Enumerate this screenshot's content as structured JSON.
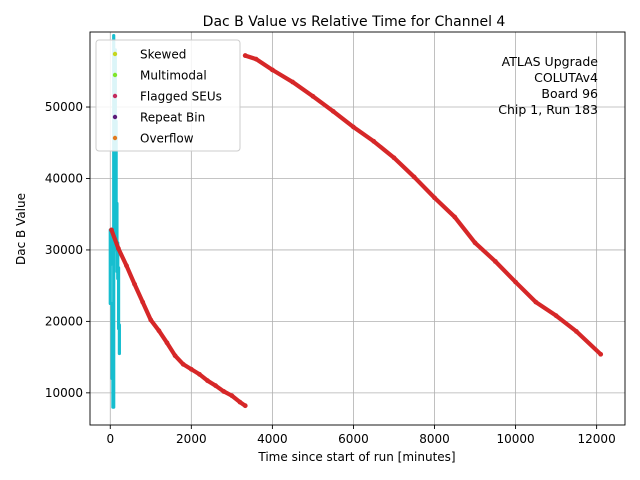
{
  "chart_data": {
    "type": "scatter",
    "title": "Dac B Value vs Relative Time for Channel 4",
    "xlabel": "Time since start of run [minutes]",
    "ylabel": "Dac B Value",
    "xlim": [
      -500,
      12700
    ],
    "ylim": [
      5500,
      60500
    ],
    "xticks": [
      0,
      2000,
      4000,
      6000,
      8000,
      10000,
      12000
    ],
    "xtick_labels": [
      "0",
      "2000",
      "4000",
      "6000",
      "8000",
      "10000",
      "12000"
    ],
    "yticks": [
      10000,
      20000,
      30000,
      40000,
      50000
    ],
    "ytick_labels": [
      "10000",
      "20000",
      "30000",
      "40000",
      "50000"
    ],
    "grid": true,
    "legend_position": "top-left",
    "annotation": [
      "ATLAS Upgrade",
      "COLUTAv4",
      "Board 96",
      "Chip 1, Run 183"
    ],
    "series": [
      {
        "name": "Skewed",
        "color": "#c5d61f",
        "x": [],
        "y": []
      },
      {
        "name": "Multimodal",
        "color": "#7fe62a",
        "x": [],
        "y": []
      },
      {
        "name": "Flagged SEUs",
        "color": "#c42a5d",
        "x": [],
        "y": []
      },
      {
        "name": "Repeat Bin",
        "color": "#5b1a7a",
        "x": [],
        "y": []
      },
      {
        "name": "Overflow",
        "color": "#e07a1f",
        "x": [],
        "y": []
      },
      {
        "name": "Cyan",
        "color": "#17becf",
        "in_legend": false,
        "segments": [
          {
            "x": [
              0,
              0
            ],
            "y": [
              22500,
              32800
            ]
          },
          {
            "x": [
              25,
              25
            ],
            "y": [
              28000,
              32500
            ]
          },
          {
            "x": [
              45,
              45
            ],
            "y": [
              12000,
              22500
            ]
          },
          {
            "x": [
              65,
              65
            ],
            "y": [
              8000,
              12500
            ]
          },
          {
            "x": [
              85,
              85
            ],
            "y": [
              8000,
              60000
            ]
          },
          {
            "x": [
              105,
              105
            ],
            "y": [
              31000,
              56000
            ]
          },
          {
            "x": [
              125,
              125
            ],
            "y": [
              38000,
              58000
            ]
          },
          {
            "x": [
              145,
              145
            ],
            "y": [
              30000,
              48000
            ]
          },
          {
            "x": [
              165,
              165
            ],
            "y": [
              27000,
              36500
            ]
          },
          {
            "x": [
              185,
              185
            ],
            "y": [
              26000,
              31000
            ]
          },
          {
            "x": [
              205,
              205
            ],
            "y": [
              19000,
              27500
            ]
          },
          {
            "x": [
              225,
              225
            ],
            "y": [
              15500,
              19500
            ]
          }
        ]
      },
      {
        "name": "Ramp Down",
        "color": "#d62728",
        "in_legend": false,
        "x": [
          30,
          200,
          400,
          600,
          800,
          1000,
          1200,
          1400,
          1600,
          1800,
          2000,
          2200,
          2400,
          2600,
          2800,
          3000,
          3200,
          3330
        ],
        "y": [
          32800,
          30200,
          27800,
          25200,
          22700,
          20200,
          18700,
          17000,
          15200,
          14000,
          13300,
          12600,
          11700,
          11000,
          10200,
          9600,
          8700,
          8200
        ]
      },
      {
        "name": "Ramp Down Long",
        "color": "#d62728",
        "in_legend": false,
        "x": [
          3330,
          3600,
          4000,
          4500,
          5000,
          5500,
          6000,
          6500,
          7000,
          7500,
          8000,
          8500,
          9000,
          9500,
          10000,
          10500,
          11000,
          11500,
          12100
        ],
        "y": [
          57200,
          56700,
          55200,
          53500,
          51500,
          49400,
          47200,
          45200,
          42900,
          40200,
          37300,
          34600,
          31000,
          28400,
          25500,
          22700,
          20800,
          18600,
          15400
        ]
      }
    ]
  }
}
